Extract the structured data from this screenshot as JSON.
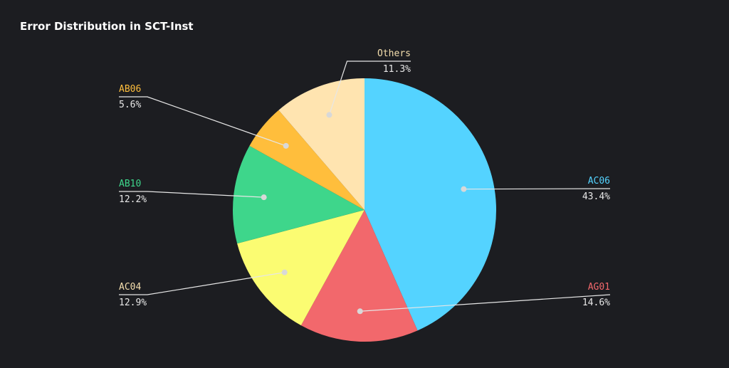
{
  "chart_data": {
    "type": "pie",
    "title": "Error Distribution in SCT-Inst",
    "slices": [
      {
        "label": "AC06",
        "value": 43.4,
        "value_label": "43.4%",
        "color": "#54d3ff"
      },
      {
        "label": "AG01",
        "value": 14.6,
        "value_label": "14.6%",
        "color": "#f2686c"
      },
      {
        "label": "AC04",
        "value": 12.9,
        "value_label": "12.9%",
        "color": "#fbfc72"
      },
      {
        "label": "AB10",
        "value": 12.2,
        "value_label": "12.2%",
        "color": "#3ed68b"
      },
      {
        "label": "AB06",
        "value": 5.6,
        "value_label": "5.6%",
        "color": "#ffbe3c"
      },
      {
        "label": "Others",
        "value": 11.3,
        "value_label": "11.3%",
        "color": "#ffe4b0"
      }
    ]
  }
}
